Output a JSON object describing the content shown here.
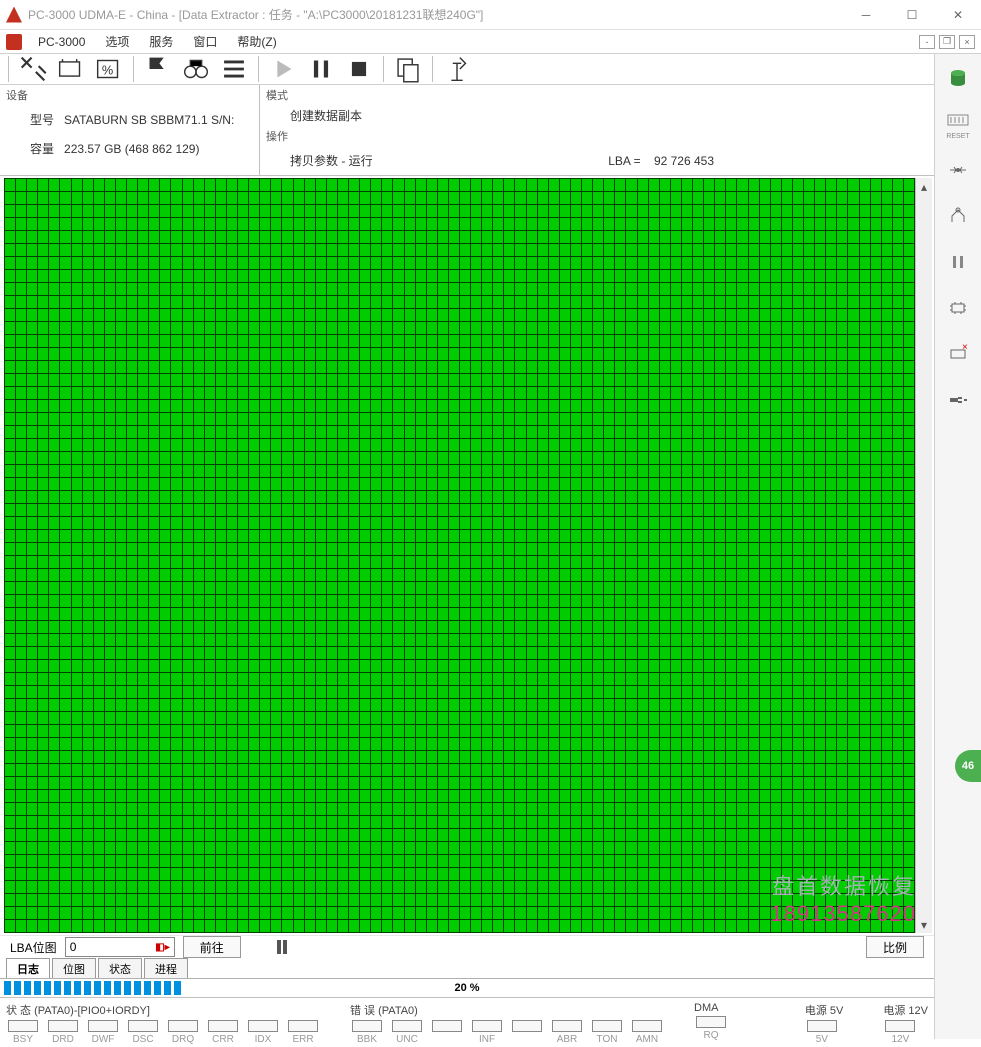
{
  "window": {
    "title": "PC-3000 UDMA-E - China - [Data Extractor : 任务 - \"A:\\PC3000\\20181231联想240G\"]",
    "app_short": "PC-3000"
  },
  "menu": {
    "items": [
      "PC-3000",
      "选项",
      "服务",
      "窗口",
      "帮助(Z)"
    ]
  },
  "toolbar": {
    "buttons": [
      {
        "name": "tools-icon",
        "glyph": "✕✕"
      },
      {
        "name": "range-icon",
        "glyph": "▭"
      },
      {
        "name": "percent-icon",
        "glyph": "%"
      },
      {
        "sep": true
      },
      {
        "name": "flag-icon",
        "glyph": "⚑"
      },
      {
        "name": "binoculars-icon",
        "glyph": "🔭"
      },
      {
        "name": "list-icon",
        "glyph": "≣"
      },
      {
        "sep": true
      },
      {
        "name": "play-icon",
        "glyph": "▶"
      },
      {
        "name": "pause-icon",
        "glyph": "❚❚"
      },
      {
        "name": "stop-icon",
        "glyph": "■"
      },
      {
        "sep": true
      },
      {
        "name": "copy-icon",
        "glyph": "❐"
      },
      {
        "sep": true
      },
      {
        "name": "exit-icon",
        "glyph": "🚶"
      }
    ]
  },
  "side_toolbar": [
    {
      "name": "cylinder-icon",
      "color": "#4caf50"
    },
    {
      "name": "reset-icon",
      "label": "RESET"
    },
    {
      "name": "seek-icon"
    },
    {
      "name": "connector-icon"
    },
    {
      "name": "pause-side-icon"
    },
    {
      "name": "chip-icon"
    },
    {
      "name": "eject-icon"
    },
    {
      "name": "power-icon"
    }
  ],
  "info": {
    "device_group": "设备",
    "model_label": "型号",
    "model_value": "SATABURN  SB SBBM71.1 S/N:",
    "capacity_label": "容量",
    "capacity_value": "223.57 GB (468 862 129)",
    "mode_group": "模式",
    "mode_value": "创建数据副本",
    "op_group": "操作",
    "op_value": "拷贝参数 - 运行",
    "lba_label": "LBA =",
    "lba_value": "92 726 453"
  },
  "sector_map": {
    "cols": 82,
    "rows": 58,
    "cell_color_ok": "#00cc00",
    "grid_line_color": "#004000",
    "background": "#ffffff"
  },
  "lba_nav": {
    "label": "LBA位图",
    "value": "0",
    "goto_btn": "前往",
    "scale_btn": "比例"
  },
  "watermark": {
    "line1": "盘首数据恢复",
    "line2": "18913587620"
  },
  "tabs": [
    {
      "label": "日志",
      "active": true
    },
    {
      "label": "位图",
      "active": false
    },
    {
      "label": "状态",
      "active": false
    },
    {
      "label": "进程",
      "active": false
    }
  ],
  "progress": {
    "percent": "20 %",
    "value": 20
  },
  "status": {
    "pata_title": "状 态 (PATA0)-[PIO0+IORDY]",
    "pata_flags": [
      "BSY",
      "DRD",
      "DWF",
      "DSC",
      "DRQ",
      "CRR",
      "IDX",
      "ERR"
    ],
    "err_title": "错 误 (PATA0)",
    "err_flags": [
      "BBK",
      "UNC",
      "",
      "INF",
      "",
      "ABR",
      "TON",
      "AMN"
    ],
    "dma_title": "DMA",
    "dma_flags": [
      "RQ"
    ],
    "pwr5_title": "电源 5V",
    "pwr5_val": "5V",
    "pwr12_title": "电源 12V",
    "pwr12_val": "12V"
  },
  "badge": "46"
}
